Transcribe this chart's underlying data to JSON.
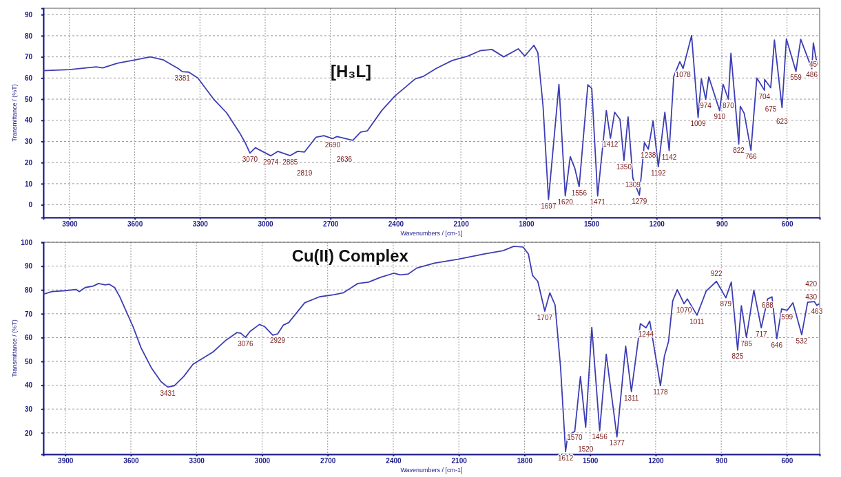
{
  "chart_data": [
    {
      "type": "line",
      "title": "[H₃L]",
      "xlabel": "Wavenumbers / [cm-1]",
      "ylabel": "Transmittance / (%T)",
      "color": "#3d3db4",
      "x": [
        4020,
        3900,
        3777,
        3747,
        3680,
        3600,
        3528,
        3467,
        3400,
        3381,
        3352,
        3310,
        3237,
        3177,
        3117,
        3090,
        3070,
        3045,
        2974,
        2942,
        2885,
        2851,
        2819,
        2766,
        2730,
        2690,
        2670,
        2636,
        2597,
        2561,
        2530,
        2464,
        2403,
        2310,
        2274,
        2214,
        2140,
        2067,
        2012,
        1957,
        1903,
        1836,
        1806,
        1764,
        1746,
        1722,
        1697,
        1649,
        1620,
        1597,
        1576,
        1556,
        1516,
        1498,
        1471,
        1431,
        1412,
        1393,
        1368,
        1350,
        1331,
        1309,
        1279,
        1256,
        1238,
        1216,
        1192,
        1162,
        1142,
        1121,
        1093,
        1078,
        1039,
        1009,
        994,
        974,
        960,
        910,
        894,
        870,
        858,
        822,
        815,
        797,
        766,
        739,
        704,
        703,
        675,
        658,
        623,
        603,
        559,
        537,
        486,
        479,
        467,
        459
      ],
      "values": [
        63.5,
        64,
        65.3,
        64.8,
        67,
        68.5,
        70,
        68.5,
        64.5,
        63,
        62.8,
        60,
        50,
        43.5,
        34,
        29,
        24.5,
        27,
        23.2,
        25.3,
        23.3,
        25.3,
        25,
        32,
        32.7,
        31.3,
        32.3,
        31.5,
        30.5,
        34.4,
        35,
        44.6,
        51.5,
        59.6,
        60.7,
        64.5,
        68.3,
        70.4,
        72.9,
        73.5,
        70,
        73.8,
        70.4,
        75.5,
        72,
        46.6,
        2.5,
        57,
        4.2,
        22.8,
        17.3,
        8.6,
        56.8,
        55,
        4.2,
        44.6,
        31.5,
        43.8,
        40.4,
        21,
        41.6,
        12.6,
        4.5,
        29.5,
        26.3,
        39.7,
        18,
        43.8,
        25.6,
        60.7,
        67.7,
        64.5,
        80.1,
        41.3,
        59.6,
        50,
        60.5,
        44.6,
        57,
        50,
        71.7,
        28.7,
        46.6,
        43.3,
        25.8,
        60,
        54.2,
        59.3,
        55.4,
        78,
        46,
        78.5,
        63.1,
        78.3,
        64.4,
        76.6,
        69.5,
        66
      ],
      "xlim": [
        4020,
        450
      ],
      "ylim": [
        -6,
        93
      ],
      "xticks": [
        3900,
        3600,
        3300,
        3000,
        2700,
        2400,
        2100,
        1800,
        1500,
        1200,
        900,
        600
      ],
      "yticks": [
        0,
        10,
        20,
        30,
        40,
        50,
        60,
        70,
        80,
        90
      ],
      "grid": true,
      "annotations": [
        {
          "text": "3381",
          "x": 3381,
          "y": 63
        },
        {
          "text": "3070",
          "x": 3070,
          "y": 24.5
        },
        {
          "text": "2974",
          "x": 2974,
          "y": 23.2
        },
        {
          "text": "2885",
          "x": 2885,
          "y": 23.3
        },
        {
          "text": "2819",
          "x": 2819,
          "y": 25
        },
        {
          "text": "2690",
          "x": 2690,
          "y": 31.3
        },
        {
          "text": "2636",
          "x": 2636,
          "y": 31.5
        },
        {
          "text": "1697",
          "x": 1697,
          "y": 2.5
        },
        {
          "text": "1620",
          "x": 1620,
          "y": 4.2
        },
        {
          "text": "1556",
          "x": 1556,
          "y": 8.6
        },
        {
          "text": "1471",
          "x": 1471,
          "y": 4.2
        },
        {
          "text": "1412",
          "x": 1412,
          "y": 31.5
        },
        {
          "text": "1350",
          "x": 1350,
          "y": 21
        },
        {
          "text": "1309",
          "x": 1309,
          "y": 12.6
        },
        {
          "text": "1279",
          "x": 1279,
          "y": 4.5
        },
        {
          "text": "1238",
          "x": 1238,
          "y": 26.3
        },
        {
          "text": "1192",
          "x": 1192,
          "y": 18
        },
        {
          "text": "1142",
          "x": 1142,
          "y": 25.6
        },
        {
          "text": "1078",
          "x": 1078,
          "y": 64.5
        },
        {
          "text": "1009",
          "x": 1009,
          "y": 41.3
        },
        {
          "text": "974",
          "x": 974,
          "y": 50
        },
        {
          "text": "910",
          "x": 910,
          "y": 44.6
        },
        {
          "text": "870",
          "x": 870,
          "y": 50
        },
        {
          "text": "822",
          "x": 822,
          "y": 28.7
        },
        {
          "text": "766",
          "x": 766,
          "y": 25.8
        },
        {
          "text": "704",
          "x": 704,
          "y": 54.2
        },
        {
          "text": "675",
          "x": 675,
          "y": 55.4
        },
        {
          "text": "623",
          "x": 623,
          "y": 46
        },
        {
          "text": "559",
          "x": 559,
          "y": 63.1
        },
        {
          "text": "486",
          "x": 486,
          "y": 64.4
        },
        "45"
      ]
    },
    {
      "type": "line",
      "title": "Cu(II) Complex",
      "xlabel": "Wavenumbers / [cm-1]",
      "ylabel": "Transmittance / (%T)",
      "color": "#3d3db4",
      "x": [
        4000,
        3961,
        3900,
        3851,
        3836,
        3809,
        3772,
        3748,
        3717,
        3699,
        3674,
        3650,
        3626,
        3590,
        3553,
        3505,
        3462,
        3431,
        3401,
        3358,
        3316,
        3225,
        3164,
        3115,
        3097,
        3076,
        3055,
        3012,
        2988,
        2951,
        2929,
        2903,
        2878,
        2805,
        2738,
        2671,
        2628,
        2562,
        2513,
        2458,
        2398,
        2368,
        2331,
        2292,
        2213,
        2104,
        1982,
        1897,
        1849,
        1806,
        1782,
        1763,
        1739,
        1707,
        1684,
        1660,
        1635,
        1612,
        1602,
        1570,
        1544,
        1520,
        1492,
        1456,
        1426,
        1377,
        1337,
        1311,
        1270,
        1244,
        1227,
        1178,
        1160,
        1141,
        1122,
        1101,
        1070,
        1055,
        1011,
        969,
        922,
        879,
        854,
        825,
        808,
        785,
        751,
        717,
        688,
        668,
        646,
        624,
        599,
        572,
        532,
        505,
        474,
        463,
        452
      ],
      "values": [
        78.2,
        79.3,
        79.7,
        80.2,
        79.3,
        81,
        81.6,
        82.7,
        82.1,
        82.4,
        81,
        77,
        72,
        64.6,
        55.6,
        47.1,
        41.5,
        39.2,
        39.8,
        43.7,
        48.8,
        53.9,
        59,
        62.1,
        61.8,
        60.1,
        62.6,
        65.5,
        64.6,
        61,
        61.5,
        65.2,
        66.3,
        74.6,
        77.1,
        78,
        78.8,
        82.7,
        83.3,
        85.3,
        87,
        86.3,
        86.7,
        89.2,
        91.2,
        92.9,
        95.1,
        96.5,
        98.3,
        98,
        95.1,
        86.1,
        83.6,
        71.1,
        78.8,
        73.7,
        47.7,
        12.1,
        18.9,
        20.6,
        43.7,
        22.3,
        64.3,
        20.9,
        53,
        18.3,
        56.4,
        37.3,
        65.8,
        64.1,
        66.9,
        39.8,
        52.2,
        58.4,
        75.4,
        80.1,
        74.2,
        76.2,
        69.4,
        79.5,
        83.6,
        76.7,
        83.3,
        54.7,
        73.4,
        60.1,
        79.9,
        64.1,
        76.2,
        77.1,
        59.5,
        72,
        71.4,
        74.6,
        61.2,
        74.8,
        75.1,
        73.5,
        74.2
      ],
      "xlim": [
        4000,
        450
      ],
      "ylim": [
        11,
        100
      ],
      "xticks": [
        3900,
        3600,
        3300,
        3000,
        2700,
        2400,
        2100,
        1800,
        1500,
        1200,
        900,
        600
      ],
      "yticks": [
        20,
        30,
        40,
        50,
        60,
        70,
        80,
        90,
        100
      ],
      "grid": true,
      "annotations": [
        {
          "text": "3431",
          "x": 3431,
          "y": 39.2
        },
        {
          "text": "3076",
          "x": 3076,
          "y": 60.1
        },
        {
          "text": "2929",
          "x": 2929,
          "y": 61.5
        },
        {
          "text": "1707",
          "x": 1707,
          "y": 71.1
        },
        {
          "text": "1612",
          "x": 1612,
          "y": 12.1
        },
        {
          "text": "1570",
          "x": 1570,
          "y": 20.6
        },
        {
          "text": "1520",
          "x": 1520,
          "y": 22.3
        },
        {
          "text": "1456",
          "x": 1456,
          "y": 20.9
        },
        {
          "text": "1377",
          "x": 1377,
          "y": 18.3
        },
        {
          "text": "1311",
          "x": 1311,
          "y": 37.3
        },
        {
          "text": "1244",
          "x": 1244,
          "y": 64.1
        },
        {
          "text": "1178",
          "x": 1178,
          "y": 39.8
        },
        {
          "text": "1070",
          "x": 1070,
          "y": 74.2
        },
        {
          "text": "1011",
          "x": 1011,
          "y": 69.4
        },
        {
          "text": "922",
          "x": 922,
          "y": 83.6
        },
        {
          "text": "879",
          "x": 879,
          "y": 76.7
        },
        {
          "text": "825",
          "x": 825,
          "y": 54.7
        },
        {
          "text": "785",
          "x": 785,
          "y": 60.1
        },
        {
          "text": "717",
          "x": 717,
          "y": 64.1
        },
        {
          "text": "688",
          "x": 688,
          "y": 76.2
        },
        {
          "text": "646",
          "x": 646,
          "y": 59.5
        },
        {
          "text": "599",
          "x": 599,
          "y": 71.4
        },
        {
          "text": "532",
          "x": 532,
          "y": 61.2
        },
        {
          "text": "463",
          "x": 463,
          "y": 73.5
        },
        "420",
        "430"
      ]
    }
  ]
}
